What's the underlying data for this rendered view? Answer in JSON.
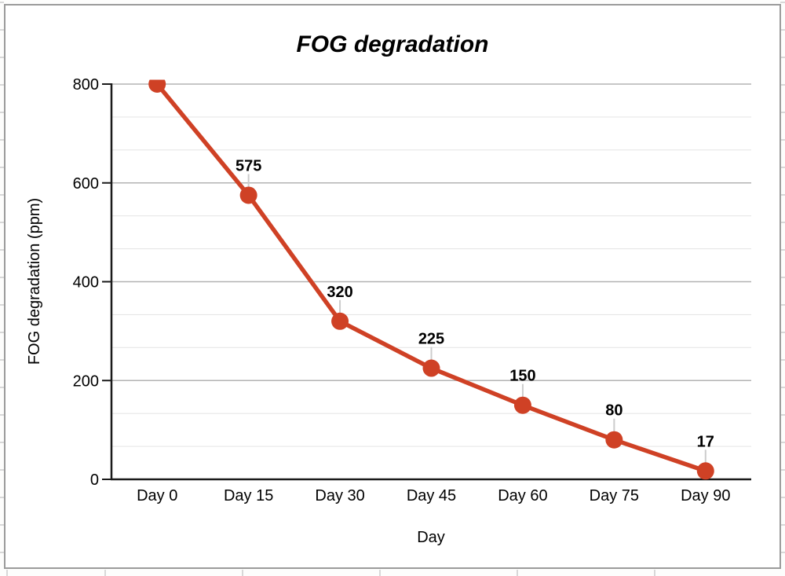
{
  "chart_data": {
    "type": "line",
    "title": "FOG degradation",
    "xlabel": "Day",
    "ylabel": "FOG degradation (ppm)",
    "categories": [
      "Day 0",
      "Day 15",
      "Day 30",
      "Day 45",
      "Day 60",
      "Day 75",
      "Day 90"
    ],
    "values": [
      800,
      575,
      320,
      225,
      150,
      80,
      17
    ],
    "point_labels": [
      "",
      "575",
      "320",
      "225",
      "150",
      "80",
      "17"
    ],
    "ylim": [
      0,
      800
    ],
    "y_ticks": [
      0,
      200,
      400,
      600,
      800
    ],
    "y_tick_labels": [
      "0",
      "200",
      "400",
      "600",
      "800"
    ],
    "y_minor_divisions_per_major": 3,
    "grid": "horizontal-only",
    "legend": "none",
    "marker": "circle",
    "colors": {
      "series": "#cf4125",
      "major_grid": "#b3b3b3",
      "minor_grid": "#e7e7e7",
      "axis": "#1a1a1a",
      "text": "#000000",
      "leader_line": "#cccccc",
      "frame_border": "#9b9b9b",
      "sheet_gridline": "#d8d8d8"
    }
  }
}
